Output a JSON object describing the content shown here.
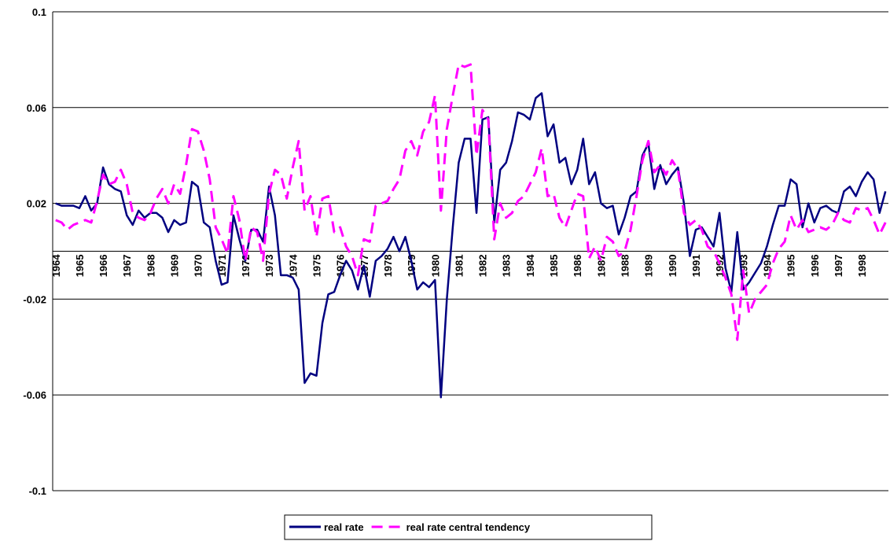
{
  "chart_data": {
    "type": "line",
    "categories": [
      "1964",
      null,
      null,
      null,
      "1965",
      null,
      null,
      null,
      "1966",
      null,
      null,
      null,
      "1967",
      null,
      null,
      null,
      "1968",
      null,
      null,
      null,
      "1969",
      null,
      null,
      null,
      "1970",
      null,
      null,
      null,
      "1971",
      null,
      null,
      null,
      "1972",
      null,
      null,
      null,
      "1973",
      null,
      null,
      null,
      "1974",
      null,
      null,
      null,
      "1975",
      null,
      null,
      null,
      "1976",
      null,
      null,
      null,
      "1977",
      null,
      null,
      null,
      "1978",
      null,
      null,
      null,
      "1979",
      null,
      null,
      null,
      "1980",
      null,
      null,
      null,
      "1981",
      null,
      null,
      null,
      "1982",
      null,
      null,
      null,
      "1983",
      null,
      null,
      null,
      "1984",
      null,
      null,
      null,
      "1985",
      null,
      null,
      null,
      "1986",
      null,
      null,
      null,
      "1987",
      null,
      null,
      null,
      "1988",
      null,
      null,
      null,
      "1989",
      null,
      null,
      null,
      "1990",
      null,
      null,
      null,
      "1991",
      null,
      null,
      null,
      "1992",
      null,
      null,
      null,
      "1993",
      null,
      null,
      null,
      "1994",
      null,
      null,
      null,
      "1995",
      null,
      null,
      null,
      "1996",
      null,
      null,
      null,
      "1997",
      null,
      null,
      null,
      "1998",
      null,
      null,
      null,
      null
    ],
    "series": [
      {
        "name": "real rate",
        "color": "#000080",
        "dash": false,
        "values": [
          0.02,
          0.019,
          0.019,
          0.019,
          0.018,
          0.023,
          0.017,
          0.02,
          0.035,
          0.028,
          0.026,
          0.025,
          0.015,
          0.011,
          0.017,
          0.014,
          0.016,
          0.016,
          0.014,
          0.008,
          0.013,
          0.011,
          0.012,
          0.029,
          0.027,
          0.012,
          0.01,
          -0.004,
          -0.014,
          -0.013,
          0.015,
          0.005,
          -0.004,
          0.009,
          0.009,
          0.004,
          0.027,
          0.015,
          -0.01,
          -0.01,
          -0.011,
          -0.016,
          -0.055,
          -0.051,
          -0.052,
          -0.03,
          -0.018,
          -0.017,
          -0.01,
          -0.004,
          -0.008,
          -0.016,
          -0.006,
          -0.019,
          -0.004,
          -0.002,
          0.001,
          0.006,
          0.0,
          0.006,
          -0.004,
          -0.016,
          -0.013,
          -0.015,
          -0.012,
          -0.061,
          -0.02,
          0.01,
          0.037,
          0.047,
          0.047,
          0.016,
          0.055,
          0.056,
          0.012,
          0.034,
          0.037,
          0.046,
          0.058,
          0.057,
          0.055,
          0.064,
          0.066,
          0.048,
          0.053,
          0.037,
          0.039,
          0.028,
          0.034,
          0.047,
          0.028,
          0.033,
          0.02,
          0.018,
          0.019,
          0.007,
          0.014,
          0.023,
          0.025,
          0.04,
          0.045,
          0.026,
          0.036,
          0.028,
          0.032,
          0.035,
          0.02,
          -0.002,
          0.009,
          0.01,
          0.006,
          0.002,
          0.016,
          -0.007,
          -0.017,
          0.008,
          -0.016,
          -0.013,
          -0.009,
          -0.005,
          0.002,
          0.011,
          0.019,
          0.019,
          0.03,
          0.028,
          0.01,
          0.02,
          0.012,
          0.018,
          0.019,
          0.017,
          0.016,
          0.025,
          0.027,
          0.023,
          0.029,
          0.033,
          0.03,
          0.016,
          0.025
        ]
      },
      {
        "name": "real rate central tendency",
        "color": "#ff00ff",
        "dash": true,
        "values": [
          0.013,
          0.012,
          0.009,
          0.011,
          0.012,
          0.013,
          0.012,
          0.021,
          0.032,
          0.028,
          0.029,
          0.034,
          0.028,
          0.016,
          0.014,
          0.013,
          0.016,
          0.022,
          0.026,
          0.02,
          0.028,
          0.024,
          0.036,
          0.051,
          0.05,
          0.042,
          0.03,
          0.01,
          0.005,
          -0.001,
          0.023,
          0.013,
          -0.004,
          0.01,
          0.008,
          -0.004,
          0.024,
          0.034,
          0.032,
          0.022,
          0.035,
          0.046,
          0.017,
          0.023,
          0.006,
          0.022,
          0.023,
          0.008,
          0.01,
          0.002,
          -0.002,
          -0.01,
          0.005,
          0.004,
          0.019,
          0.02,
          0.021,
          0.026,
          0.03,
          0.042,
          0.046,
          0.04,
          0.05,
          0.054,
          0.065,
          0.017,
          0.051,
          0.065,
          0.078,
          0.077,
          0.078,
          0.04,
          0.059,
          0.055,
          0.005,
          0.02,
          0.014,
          0.016,
          0.021,
          0.023,
          0.028,
          0.033,
          0.043,
          0.023,
          0.024,
          0.014,
          0.01,
          0.017,
          0.024,
          0.023,
          -0.003,
          0.002,
          -0.004,
          0.006,
          0.004,
          -0.002,
          0.0,
          0.009,
          0.023,
          0.038,
          0.046,
          0.033,
          0.036,
          0.032,
          0.038,
          0.034,
          0.016,
          0.011,
          0.013,
          0.009,
          0.002,
          0.0,
          -0.005,
          -0.011,
          -0.018,
          -0.037,
          -0.008,
          -0.026,
          -0.02,
          -0.017,
          -0.014,
          -0.005,
          0.001,
          0.004,
          0.015,
          0.009,
          0.013,
          0.008,
          0.009,
          0.01,
          0.009,
          0.011,
          0.016,
          0.013,
          0.012,
          0.018,
          0.017,
          0.018,
          0.013,
          0.007,
          0.012
        ]
      }
    ],
    "ylim": [
      -0.1,
      0.1
    ],
    "yticks": [
      -0.1,
      -0.06,
      -0.02,
      0.02,
      0.06,
      0.1
    ],
    "grid": true,
    "legend": "bottom"
  }
}
